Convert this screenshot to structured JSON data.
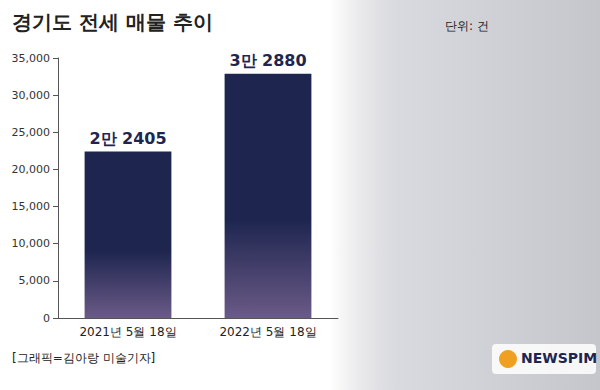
{
  "chart_data": {
    "type": "bar",
    "title": "경기도 전세 매물 추이",
    "annotations": [
      "단위: 건",
      "[그래픽=김아랑 미술기자]",
      "NEWSPIM"
    ],
    "categories": [
      "2021년 5월 18일",
      "2022년 5월 18일"
    ],
    "values": [
      22405,
      32880
    ],
    "value_labels": [
      "2만 2405",
      "3만 2880"
    ],
    "data_labels": true,
    "color": "#1e2650",
    "ylim": [
      0,
      35000
    ],
    "yticks": [
      0,
      5000,
      10000,
      15000,
      20000,
      25000,
      30000,
      35000
    ],
    "grid": false
  }
}
